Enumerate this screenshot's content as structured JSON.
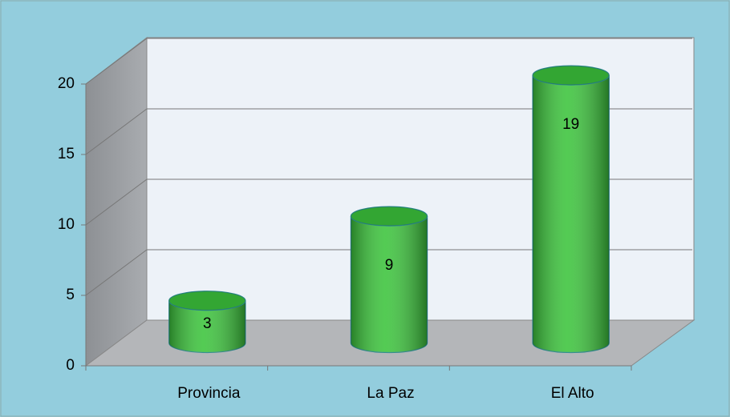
{
  "chart_data": {
    "type": "bar3d",
    "categories": [
      "Provincia",
      "La Paz",
      "El Alto"
    ],
    "values": [
      3,
      9,
      19
    ],
    "color": "#3cc43c",
    "ylim": [
      0,
      20
    ],
    "yticks": [
      0,
      5,
      10,
      15,
      20
    ],
    "grid": true
  }
}
